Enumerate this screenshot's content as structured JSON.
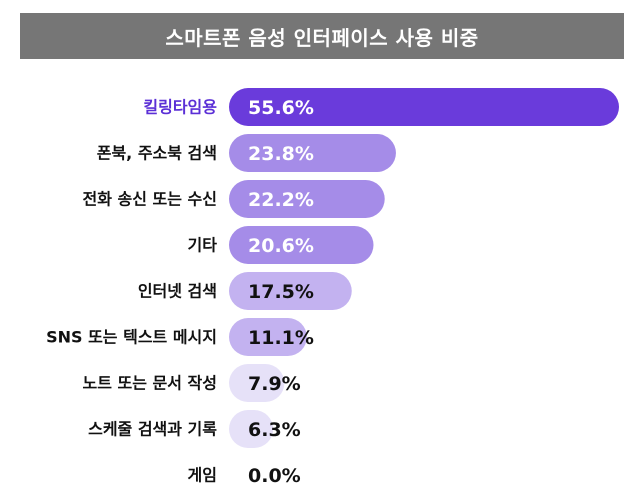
{
  "title": "스마트폰 음성 인터페이스 사용 비중",
  "colors": {
    "title_bg": "#767676",
    "highlight_label": "#5B2FD6",
    "normal_label": "#111111",
    "bar_top": "#6A3BDB",
    "bar_mid": "#A58CE8",
    "bar_light": "#C3B2F0",
    "bar_pale": "#E6E1F8"
  },
  "chart_data": {
    "type": "bar",
    "orientation": "horizontal",
    "title": "스마트폰 음성 인터페이스 사용 비중",
    "categories": [
      "킬링타임용",
      "폰북, 주소북 검색",
      "전화 송신 또는 수신",
      "기타",
      "인터넷 검색",
      "SNS 또는 텍스트 메시지",
      "노트 또는 문서 작성",
      "스케줄 검색과 기록",
      "게임"
    ],
    "values": [
      55.6,
      23.8,
      22.2,
      20.6,
      17.5,
      11.1,
      7.9,
      6.3,
      0.0
    ],
    "value_labels": [
      "55.6%",
      "23.8%",
      "22.2%",
      "20.6%",
      "17.5%",
      "11.1%",
      "7.9%",
      "6.3%",
      "0.0%"
    ],
    "xlim": [
      0,
      55.6
    ],
    "grid": false,
    "legend": "none"
  }
}
